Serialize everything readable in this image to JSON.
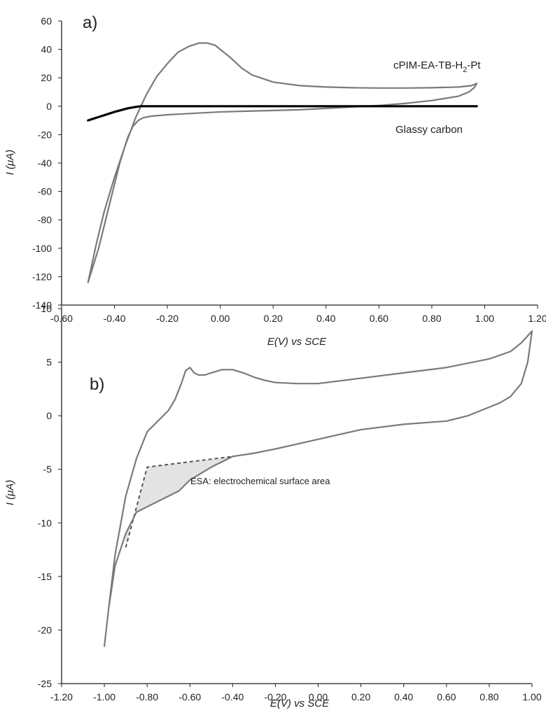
{
  "chart_data": [
    {
      "type": "line",
      "panel_label": "a)",
      "xlabel": "E(V) vs SCE",
      "ylabel": "I (μA)",
      "xlim": [
        -0.6,
        1.2
      ],
      "ylim": [
        -140,
        60
      ],
      "xticks": [
        "-0.60",
        "-0.40",
        "-0.20",
        "0.00",
        "0.20",
        "0.40",
        "0.60",
        "0.80",
        "1.00",
        "1.20"
      ],
      "yticks": [
        "60",
        "40",
        "20",
        "0",
        "-20",
        "-40",
        "-60",
        "-80",
        "-100",
        "-120",
        "-140"
      ],
      "grid": false,
      "series": [
        {
          "name": "cPIM-EA-TB-H2-Pt",
          "label_main": "cPIM-EA-TB-H",
          "label_sub": "2",
          "label_tail": "-Pt",
          "color": "#7a7a7a",
          "x": [
            -0.5,
            -0.47,
            -0.44,
            -0.4,
            -0.36,
            -0.32,
            -0.28,
            -0.24,
            -0.2,
            -0.16,
            -0.12,
            -0.08,
            -0.05,
            -0.02,
            0.0,
            0.04,
            0.08,
            0.12,
            0.2,
            0.3,
            0.4,
            0.5,
            0.6,
            0.7,
            0.8,
            0.9,
            0.95,
            0.97,
            0.96,
            0.94,
            0.9,
            0.85,
            0.8,
            0.7,
            0.6,
            0.5,
            0.4,
            0.3,
            0.2,
            0.1,
            0.0,
            -0.1,
            -0.2,
            -0.26,
            -0.29,
            -0.31,
            -0.33,
            -0.35,
            -0.38,
            -0.42,
            -0.46,
            -0.5
          ],
          "y": [
            -124,
            -98,
            -75,
            -50,
            -28,
            -8,
            8,
            21,
            30,
            38,
            42,
            44.5,
            44.5,
            43,
            40,
            34,
            27,
            22,
            17,
            14.5,
            13.5,
            13,
            12.8,
            12.8,
            13,
            13.5,
            14.5,
            16,
            13,
            10,
            7,
            5.5,
            4,
            2,
            0.5,
            -0.5,
            -1.5,
            -2.5,
            -3,
            -3.5,
            -4,
            -5,
            -6,
            -7,
            -8,
            -10,
            -14,
            -22,
            -40,
            -70,
            -100,
            -124
          ]
        },
        {
          "name": "Glassy carbon",
          "color": "#000000",
          "x": [
            -0.5,
            -0.45,
            -0.4,
            -0.35,
            -0.32,
            -0.3,
            -0.2,
            0.0,
            0.2,
            0.4,
            0.6,
            0.8,
            0.97
          ],
          "y": [
            -10,
            -7,
            -4,
            -1.5,
            -0.5,
            0,
            0,
            0,
            0,
            0,
            0,
            0,
            0
          ]
        }
      ]
    },
    {
      "type": "line",
      "panel_label": "b)",
      "xlabel": "E(V) vs SCE",
      "ylabel": "I (μA)",
      "xlim": [
        -1.2,
        1.0
      ],
      "ylim": [
        -25,
        10
      ],
      "xticks": [
        "-1.20",
        "-1.00",
        "-0.80",
        "-0.60",
        "-0.40",
        "-0.20",
        "0.00",
        "0.20",
        "0.40",
        "0.60",
        "0.80",
        "1.00"
      ],
      "yticks": [
        "10",
        "5",
        "0",
        "-5",
        "-10",
        "-15",
        "-20",
        "-25"
      ],
      "grid": false,
      "series": [
        {
          "name": "",
          "color": "#7a7a7a",
          "x": [
            -1.0,
            -0.98,
            -0.95,
            -0.9,
            -0.85,
            -0.8,
            -0.75,
            -0.7,
            -0.67,
            -0.64,
            -0.62,
            -0.6,
            -0.58,
            -0.56,
            -0.53,
            -0.5,
            -0.45,
            -0.4,
            -0.35,
            -0.3,
            -0.25,
            -0.2,
            -0.1,
            0.0,
            0.2,
            0.4,
            0.6,
            0.8,
            0.9,
            0.95,
            1.0,
            0.98,
            0.95,
            0.9,
            0.85,
            0.8,
            0.7,
            0.6,
            0.4,
            0.2,
            0.0,
            -0.2,
            -0.3,
            -0.4,
            -0.5,
            -0.6,
            -0.65,
            -0.7,
            -0.75,
            -0.8,
            -0.85,
            -0.9,
            -0.95,
            -0.98,
            -1.0
          ],
          "y": [
            -21.5,
            -18,
            -13,
            -7.5,
            -4,
            -1.5,
            -0.5,
            0.5,
            1.5,
            3,
            4.2,
            4.5,
            4,
            3.8,
            3.8,
            4,
            4.3,
            4.3,
            4,
            3.6,
            3.3,
            3.1,
            3,
            3,
            3.5,
            4,
            4.5,
            5.3,
            6,
            6.8,
            7.9,
            5,
            3,
            1.8,
            1.2,
            0.8,
            0,
            -0.5,
            -0.8,
            -1.3,
            -2.2,
            -3.1,
            -3.5,
            -3.8,
            -4.8,
            -6,
            -7,
            -7.5,
            -8,
            -8.5,
            -9,
            -11,
            -14,
            -18,
            -21.5
          ]
        }
      ],
      "annotation": {
        "text": "ESA: electrochemical surface area",
        "baseline_x": [
          -0.9,
          -0.8,
          -0.4
        ],
        "baseline_y": [
          -12.3,
          -4.8,
          -3.8
        ],
        "shade_color": "#e3e3e3"
      }
    }
  ]
}
